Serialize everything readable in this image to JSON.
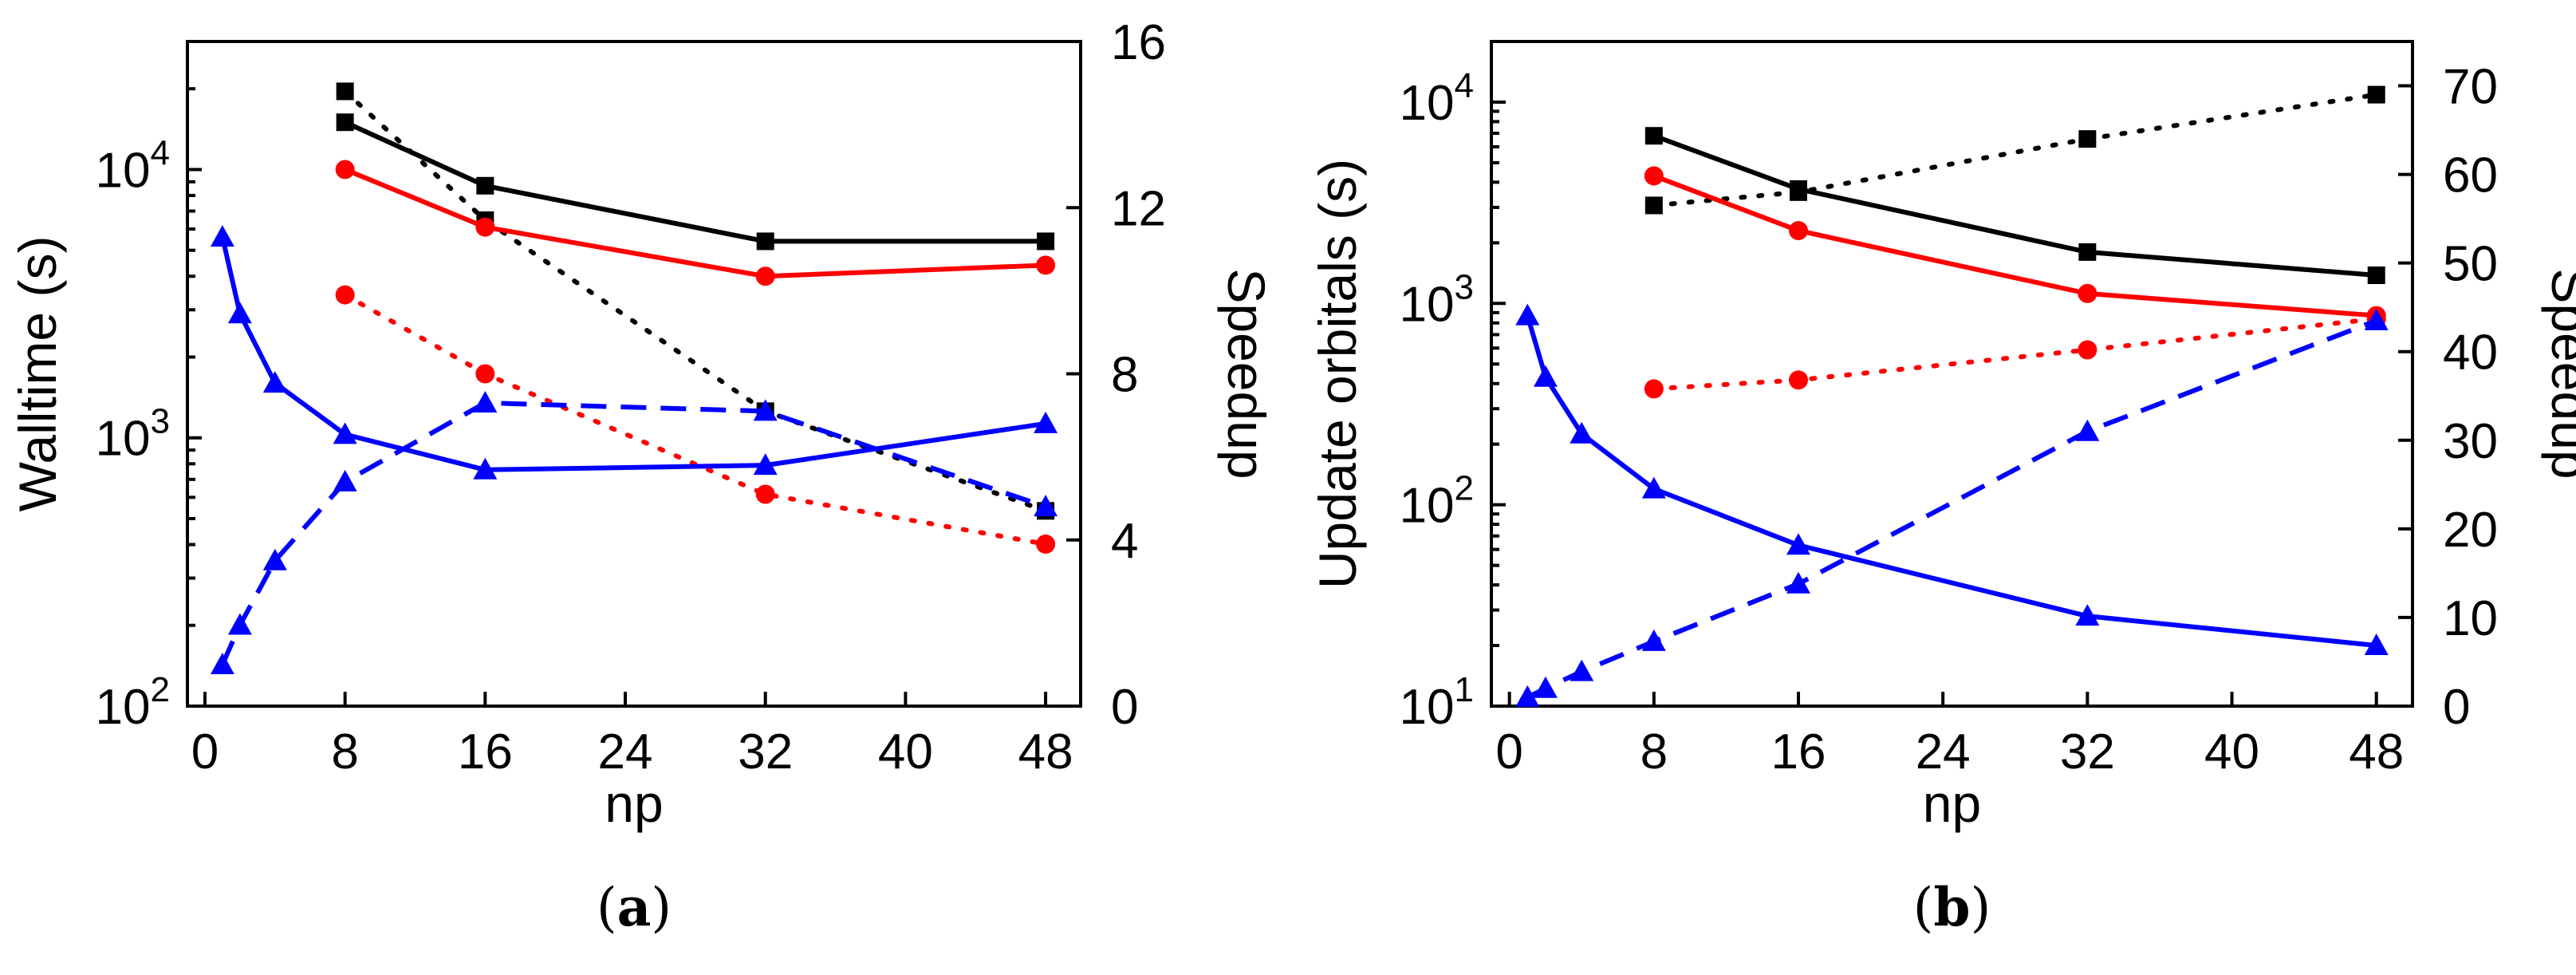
{
  "colors": {
    "black": "#000000",
    "red": "#ff0000",
    "blue": "#0000ff"
  },
  "chart_data": [
    {
      "type": "line",
      "panel_label": {
        "open": "(",
        "letter": "a",
        "close": ")"
      },
      "xlabel": "np",
      "ylabel": "Walltime (s)",
      "ylabel_right": "Speedup",
      "xlim": [
        -1,
        50
      ],
      "xticks": [
        "0",
        "8",
        "16",
        "24",
        "32",
        "40",
        "48"
      ],
      "ylim_left": [
        100,
        30000
      ],
      "yscale_left": "log",
      "yticks_left": [
        {
          "value": 100,
          "base": "10",
          "exp": "2"
        },
        {
          "value": 1000,
          "base": "10",
          "exp": "3"
        },
        {
          "value": 10000,
          "base": "10",
          "exp": "4"
        }
      ],
      "ylim_right": [
        0,
        16
      ],
      "yticks_right": [
        "0",
        "4",
        "8",
        "12",
        "16"
      ],
      "grid": false,
      "series": [
        {
          "axis": "left",
          "color": "black",
          "dash": "solid",
          "marker": "square",
          "points": [
            [
              8,
              15000
            ],
            [
              16,
              8700
            ],
            [
              32,
              5400
            ],
            [
              48,
              5400
            ]
          ]
        },
        {
          "axis": "right",
          "color": "black",
          "dash": "dotted",
          "marker": "square",
          "points": [
            [
              8,
              14.8
            ],
            [
              16,
              11.7
            ],
            [
              32,
              7.1
            ],
            [
              48,
              4.7
            ]
          ]
        },
        {
          "axis": "left",
          "color": "red",
          "dash": "solid",
          "marker": "circle",
          "points": [
            [
              8,
              10000
            ],
            [
              16,
              6100
            ],
            [
              32,
              4000
            ],
            [
              48,
              4400
            ]
          ]
        },
        {
          "axis": "right",
          "color": "red",
          "dash": "dotted",
          "marker": "circle",
          "points": [
            [
              8,
              9.9
            ],
            [
              16,
              8.0
            ],
            [
              32,
              5.1
            ],
            [
              48,
              3.9
            ]
          ]
        },
        {
          "axis": "left",
          "color": "blue",
          "dash": "solid",
          "marker": "triangle",
          "points": [
            [
              1,
              5600
            ],
            [
              2,
              2900
            ],
            [
              4,
              1600
            ],
            [
              8,
              1030
            ],
            [
              16,
              760
            ],
            [
              32,
              790
            ],
            [
              48,
              1130
            ]
          ]
        },
        {
          "axis": "right",
          "color": "blue",
          "dash": "dashed",
          "marker": "triangle",
          "points": [
            [
              1,
              1.0
            ],
            [
              2,
              1.95
            ],
            [
              4,
              3.5
            ],
            [
              8,
              5.4
            ],
            [
              16,
              7.3
            ],
            [
              32,
              7.1
            ],
            [
              48,
              4.8
            ]
          ]
        }
      ]
    },
    {
      "type": "line",
      "panel_label": {
        "open": "(",
        "letter": "b",
        "close": ")"
      },
      "xlabel": "np",
      "ylabel": "Update orbitals (s)",
      "ylabel_right": "Speedup",
      "xlim": [
        -1,
        50
      ],
      "xticks": [
        "0",
        "8",
        "16",
        "24",
        "32",
        "40",
        "48"
      ],
      "ylim_left": [
        10,
        20000
      ],
      "yscale_left": "log",
      "yticks_left": [
        {
          "value": 10,
          "base": "10",
          "exp": "1"
        },
        {
          "value": 100,
          "base": "10",
          "exp": "2"
        },
        {
          "value": 1000,
          "base": "10",
          "exp": "3"
        },
        {
          "value": 10000,
          "base": "10",
          "exp": "4"
        }
      ],
      "ylim_right": [
        0,
        75
      ],
      "yticks_right": [
        "0",
        "10",
        "20",
        "30",
        "40",
        "50",
        "60",
        "70"
      ],
      "grid": false,
      "series": [
        {
          "axis": "left",
          "color": "black",
          "dash": "solid",
          "marker": "square",
          "points": [
            [
              8,
              6800
            ],
            [
              16,
              3700
            ],
            [
              32,
              1800
            ],
            [
              48,
              1380
            ]
          ]
        },
        {
          "axis": "right",
          "color": "black",
          "dash": "dotted",
          "marker": "square",
          "points": [
            [
              8,
              56.5
            ],
            [
              16,
              58
            ],
            [
              32,
              64
            ],
            [
              48,
              69
            ]
          ]
        },
        {
          "axis": "left",
          "color": "red",
          "dash": "solid",
          "marker": "circle",
          "points": [
            [
              8,
              4300
            ],
            [
              16,
              2300
            ],
            [
              32,
              1120
            ],
            [
              48,
              870
            ]
          ]
        },
        {
          "axis": "right",
          "color": "red",
          "dash": "dotted",
          "marker": "circle",
          "points": [
            [
              8,
              35.8
            ],
            [
              16,
              36.8
            ],
            [
              32,
              40.2
            ],
            [
              48,
              43.7
            ]
          ]
        },
        {
          "axis": "left",
          "color": "blue",
          "dash": "solid",
          "marker": "triangle",
          "points": [
            [
              1,
              870
            ],
            [
              2,
              430
            ],
            [
              4,
              225
            ],
            [
              8,
              120
            ],
            [
              16,
              63
            ],
            [
              32,
              28
            ],
            [
              48,
              20
            ]
          ]
        },
        {
          "axis": "right",
          "color": "blue",
          "dash": "dashed",
          "marker": "triangle",
          "points": [
            [
              1,
              1.0
            ],
            [
              2,
              2.0
            ],
            [
              4,
              3.9
            ],
            [
              8,
              7.3
            ],
            [
              16,
              13.8
            ],
            [
              32,
              31
            ],
            [
              48,
              43.5
            ]
          ]
        }
      ]
    }
  ]
}
